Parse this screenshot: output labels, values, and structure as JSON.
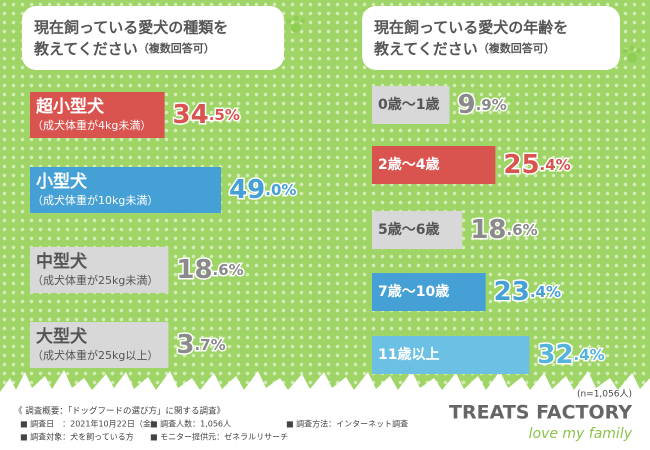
{
  "chart_data": [
    {
      "type": "hbar",
      "title_lines": [
        "現在飼っている愛犬の種類を",
        "教えてください"
      ],
      "subtitle": "（複数回答可）",
      "categories": [
        "超小型犬",
        "小型犬",
        "中型犬",
        "大型犬"
      ],
      "category_notes": [
        "（成犬体重が4kg未満）",
        "（成犬体重が10kg未満）",
        "（成犬体重が25kg未満）",
        "（成犬体重が25kg以上）"
      ],
      "values": [
        34.5,
        49.0,
        18.6,
        3.7
      ],
      "value_labels": [
        "34.5%",
        "49.0%",
        "18.6%",
        "3.7%"
      ],
      "colors": [
        "#d9534f",
        "#45a0d6",
        "#d8d8d8",
        "#d8d8d8"
      ],
      "text_colors": [
        "#ffffff",
        "#ffffff",
        "#555555",
        "#555555"
      ],
      "value_label_colors": [
        "#d9534f",
        "#45a0d6",
        "#8a8a8a",
        "#8a8a8a"
      ],
      "xlim": [
        0,
        50
      ]
    },
    {
      "type": "hbar",
      "title_lines": [
        "現在飼っている愛犬の年齢を",
        "教えてください"
      ],
      "subtitle": "（複数回答可）",
      "categories": [
        "0歳〜1歳",
        "2歳〜4歳",
        "5歳〜6歳",
        "7歳〜10歳",
        "11歳以上"
      ],
      "values": [
        9.9,
        25.4,
        18.6,
        23.4,
        32.4
      ],
      "value_labels": [
        "9.9%",
        "25.4%",
        "18.6%",
        "23.4%",
        "32.4%"
      ],
      "colors": [
        "#d8d8d8",
        "#d9534f",
        "#d8d8d8",
        "#45a0d6",
        "#6cc0e3"
      ],
      "text_colors": [
        "#555555",
        "#ffffff",
        "#555555",
        "#ffffff",
        "#ffffff"
      ],
      "value_label_colors": [
        "#8a8a8a",
        "#d9534f",
        "#8a8a8a",
        "#45a0d6",
        "#55b4dc"
      ],
      "xlim": [
        0,
        35
      ]
    }
  ],
  "sample_note": "(n=1,056人)",
  "survey": {
    "heading": "《 調査概要：「ドッグフードの選び方」に関する調査》",
    "items": [
      "■ 調査日　：2021年10月22日（金）",
      "■ 調査人数：1,056人",
      "■ 調査方法：インターネット調査",
      "■ 調査対象：犬を飼っている方",
      "■ モニター提供元：ゼネラルリサーチ"
    ]
  },
  "brand": {
    "name": "TREATS FACTORY",
    "tagline": "love my family"
  }
}
